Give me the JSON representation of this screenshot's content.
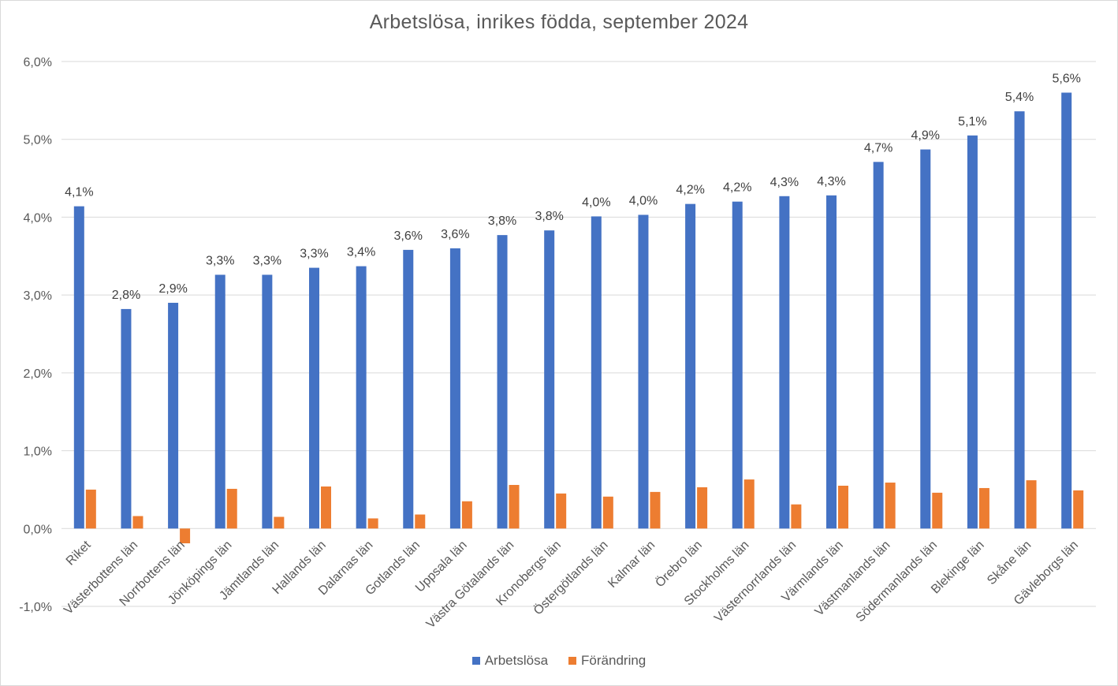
{
  "chart_data": {
    "type": "bar",
    "title": "Arbetslösa, inrikes födda, september 2024",
    "xlabel": "",
    "ylabel": "",
    "ylim": [
      -0.01,
      0.06
    ],
    "yticks": [
      "6,0%",
      "5,0%",
      "4,0%",
      "3,0%",
      "2,0%",
      "1,0%",
      "0,0%",
      "-1,0%"
    ],
    "grid": true,
    "legend_position": "bottom",
    "categories": [
      "Riket",
      "Västerbottens län",
      "Norrbottens län",
      "Jönköpings län",
      "Jämtlands län",
      "Hallands län",
      "Dalarnas län",
      "Gotlands län",
      "Uppsala län",
      "Västra Götalands län",
      "Kronobergs län",
      "Östergötlands län",
      "Kalmar län",
      "Örebro län",
      "Stockholms län",
      "Västernorrlands län",
      "Värmlands län",
      "Västmanlands län",
      "Södermanlands län",
      "Blekinge län",
      "Skåne län",
      "Gävleborgs län"
    ],
    "series": [
      {
        "name": "Arbetslösa",
        "color": "#4472c4",
        "values": [
          0.0414,
          0.0282,
          0.029,
          0.0326,
          0.0326,
          0.0335,
          0.0337,
          0.0358,
          0.036,
          0.0377,
          0.0383,
          0.0401,
          0.0403,
          0.0417,
          0.042,
          0.0427,
          0.0428,
          0.0471,
          0.0487,
          0.0505,
          0.0536,
          0.056
        ],
        "data_labels": [
          "4,1%",
          "2,8%",
          "2,9%",
          "3,3%",
          "3,3%",
          "3,3%",
          "3,4%",
          "3,6%",
          "3,6%",
          "3,8%",
          "3,8%",
          "4,0%",
          "4,0%",
          "4,2%",
          "4,2%",
          "4,3%",
          "4,3%",
          "4,7%",
          "4,9%",
          "5,1%",
          "5,4%",
          "5,6%"
        ]
      },
      {
        "name": "Förändring",
        "color": "#ed7d31",
        "values": [
          0.005,
          0.0016,
          -0.0019,
          0.0051,
          0.0015,
          0.0054,
          0.0013,
          0.0018,
          0.0035,
          0.0056,
          0.0045,
          0.0041,
          0.0047,
          0.0053,
          0.0063,
          0.0031,
          0.0055,
          0.0059,
          0.0046,
          0.0052,
          0.0062,
          0.0049
        ]
      }
    ]
  }
}
